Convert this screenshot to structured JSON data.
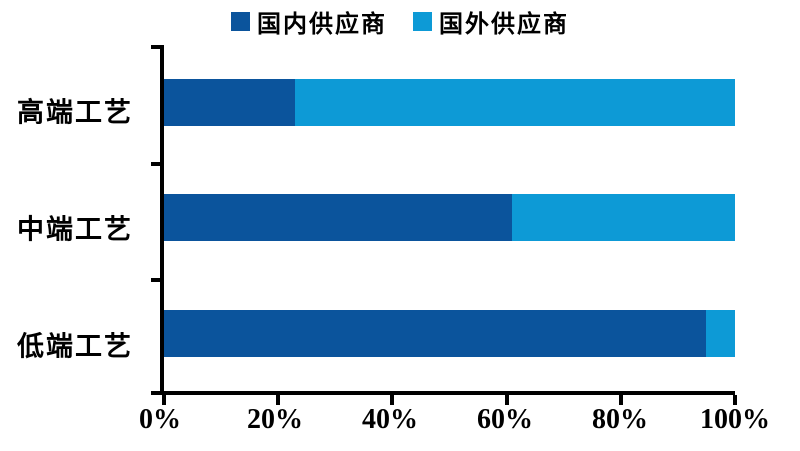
{
  "chart_data": {
    "type": "bar",
    "orientation": "horizontal",
    "stacked": true,
    "unit": "percent",
    "title": "",
    "categories": [
      "高端工艺",
      "中端工艺",
      "低端工艺"
    ],
    "series": [
      {
        "name": "国内供应商",
        "color": "#0b549c",
        "values": [
          23,
          61,
          95
        ]
      },
      {
        "name": "国外供应商",
        "color": "#0d9ad6",
        "values": [
          77,
          39,
          5
        ]
      }
    ],
    "xlim": [
      0,
      100
    ],
    "x_tick_labels": [
      "0%",
      "20%",
      "40%",
      "60%",
      "80%",
      "100%"
    ],
    "x_tick_values": [
      0,
      20,
      40,
      60,
      80,
      100
    ],
    "grid": false,
    "legend_position": "top"
  },
  "legend": {
    "items": [
      {
        "label": "国内供应商",
        "color": "#0b549c"
      },
      {
        "label": "国外供应商",
        "color": "#0d9ad6"
      }
    ]
  },
  "axes": {
    "axis_color": "#000000",
    "text_color": "#000000"
  }
}
